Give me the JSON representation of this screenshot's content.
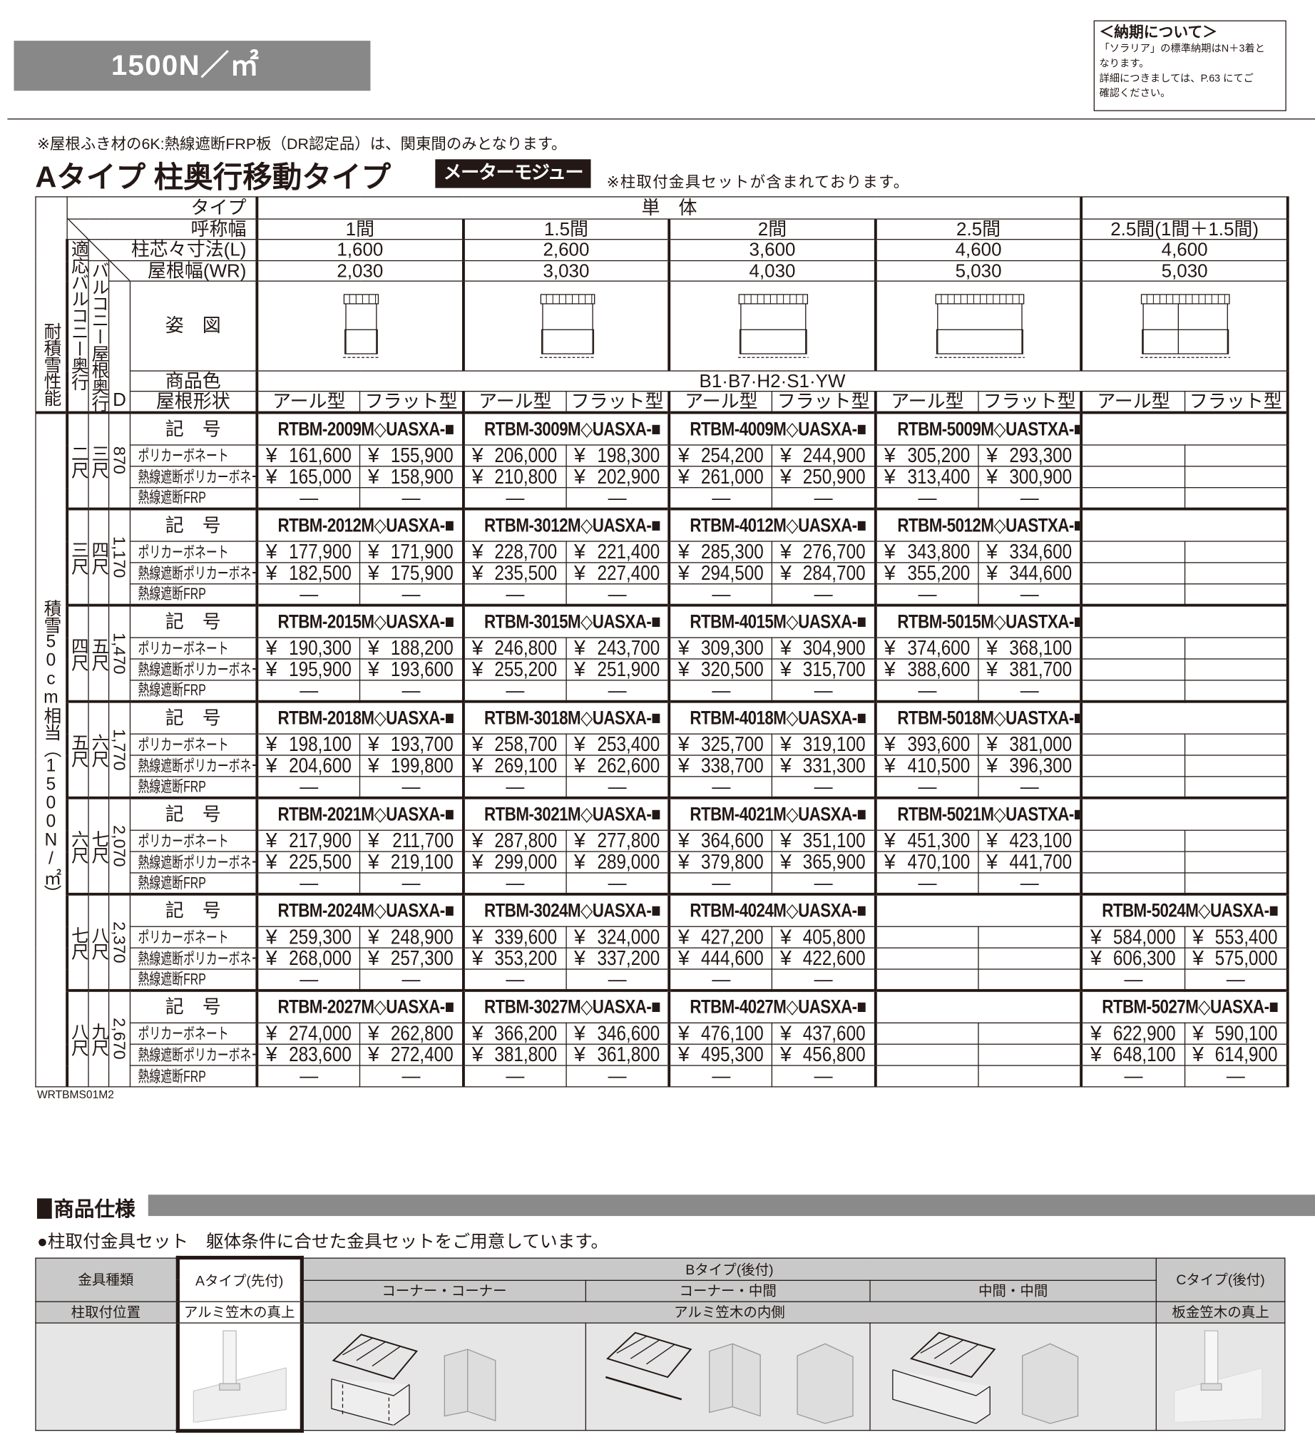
{
  "banner": "1500N／㎡",
  "notice": {
    "title": "＜納期について＞",
    "lines": [
      "「ソラリア」の標準納期はN＋3着と",
      "なります。",
      "詳細につきましては、P.63 にてご",
      "確認ください。"
    ]
  },
  "note_top": "※屋根ふき材の6K:熱線遮断FRP板（DR認定品）は、関東間のみとなります。",
  "title": "Aタイプ 柱奥行移動タイプ",
  "badge": "メーターモジュール",
  "title_note": "※柱取付金具セットが含まれております。",
  "table": {
    "side_header": "耐積雪性能",
    "labels": {
      "type": "タイプ",
      "width_name": "呼称幅",
      "post_pitch": "柱芯々寸法(L)",
      "roof_width": "屋根幅(WR)",
      "figure": "姿　図",
      "color": "商品色",
      "roof_shape": "屋根形状",
      "code": "記　号",
      "balcony_depth": "適応バルコニー奥行",
      "roof_depth": "バルコニー屋根奥行",
      "d": "D"
    },
    "type_single": "単　体",
    "columns": [
      {
        "name": "1間",
        "L": "1,600",
        "WR": "2,030"
      },
      {
        "name": "1.5間",
        "L": "2,600",
        "WR": "3,030"
      },
      {
        "name": "2間",
        "L": "3,600",
        "WR": "4,030"
      },
      {
        "name": "2.5間",
        "L": "4,600",
        "WR": "5,030"
      },
      {
        "name": "2.5間(1間＋1.5間)",
        "L": "4,600",
        "WR": "5,030"
      }
    ],
    "colors": "B1·B7·H2·S1·YW",
    "roof_shapes": [
      "アール型",
      "フラット型"
    ],
    "materials": [
      "ポリカーボネート",
      "熱線遮断ポリカーボネート",
      "熱線遮断FRP"
    ],
    "currency": "¥",
    "snow_label": "積雪50cm相当（1500N/㎡）",
    "groups": [
      {
        "bal": "二尺",
        "roof": "三尺",
        "d": "870",
        "codes": [
          "RTBM-2009M◇UASXA-■",
          "RTBM-3009M◇UASXA-■",
          "RTBM-4009M◇UASXA-■",
          "RTBM-5009M◇UASTXA-■",
          ""
        ],
        "prices": [
          [
            "161,600",
            "155,900",
            "206,000",
            "198,300",
            "254,200",
            "244,900",
            "305,200",
            "293,300",
            "",
            ""
          ],
          [
            "165,000",
            "158,900",
            "210,800",
            "202,900",
            "261,000",
            "250,900",
            "313,400",
            "300,900",
            "",
            ""
          ],
          [
            "—",
            "—",
            "—",
            "—",
            "—",
            "—",
            "—",
            "—",
            "",
            ""
          ]
        ]
      },
      {
        "bal": "三尺",
        "roof": "四尺",
        "d": "1,170",
        "codes": [
          "RTBM-2012M◇UASXA-■",
          "RTBM-3012M◇UASXA-■",
          "RTBM-4012M◇UASXA-■",
          "RTBM-5012M◇UASTXA-■",
          ""
        ],
        "prices": [
          [
            "177,900",
            "171,900",
            "228,700",
            "221,400",
            "285,300",
            "276,700",
            "343,800",
            "334,600",
            "",
            ""
          ],
          [
            "182,500",
            "175,900",
            "235,500",
            "227,400",
            "294,500",
            "284,700",
            "355,200",
            "344,600",
            "",
            ""
          ],
          [
            "—",
            "—",
            "—",
            "—",
            "—",
            "—",
            "—",
            "—",
            "",
            ""
          ]
        ]
      },
      {
        "bal": "四尺",
        "roof": "五尺",
        "d": "1,470",
        "codes": [
          "RTBM-2015M◇UASXA-■",
          "RTBM-3015M◇UASXA-■",
          "RTBM-4015M◇UASXA-■",
          "RTBM-5015M◇UASTXA-■",
          ""
        ],
        "prices": [
          [
            "190,300",
            "188,200",
            "246,800",
            "243,700",
            "309,300",
            "304,900",
            "374,600",
            "368,100",
            "",
            ""
          ],
          [
            "195,900",
            "193,600",
            "255,200",
            "251,900",
            "320,500",
            "315,700",
            "388,600",
            "381,700",
            "",
            ""
          ],
          [
            "—",
            "—",
            "—",
            "—",
            "—",
            "—",
            "—",
            "—",
            "",
            ""
          ]
        ]
      },
      {
        "bal": "五尺",
        "roof": "六尺",
        "d": "1,770",
        "codes": [
          "RTBM-2018M◇UASXA-■",
          "RTBM-3018M◇UASXA-■",
          "RTBM-4018M◇UASXA-■",
          "RTBM-5018M◇UASTXA-■",
          ""
        ],
        "prices": [
          [
            "198,100",
            "193,700",
            "258,700",
            "253,400",
            "325,700",
            "319,100",
            "393,600",
            "381,000",
            "",
            ""
          ],
          [
            "204,600",
            "199,800",
            "269,100",
            "262,600",
            "338,700",
            "331,300",
            "410,500",
            "396,300",
            "",
            ""
          ],
          [
            "—",
            "—",
            "—",
            "—",
            "—",
            "—",
            "—",
            "—",
            "",
            ""
          ]
        ]
      },
      {
        "bal": "六尺",
        "roof": "七尺",
        "d": "2,070",
        "codes": [
          "RTBM-2021M◇UASXA-■",
          "RTBM-3021M◇UASXA-■",
          "RTBM-4021M◇UASXA-■",
          "RTBM-5021M◇UASTXA-■",
          ""
        ],
        "prices": [
          [
            "217,900",
            "211,700",
            "287,800",
            "277,800",
            "364,600",
            "351,100",
            "451,300",
            "423,100",
            "",
            ""
          ],
          [
            "225,500",
            "219,100",
            "299,000",
            "289,000",
            "379,800",
            "365,900",
            "470,100",
            "441,700",
            "",
            ""
          ],
          [
            "—",
            "—",
            "—",
            "—",
            "—",
            "—",
            "—",
            "—",
            "",
            ""
          ]
        ]
      },
      {
        "bal": "七尺",
        "roof": "八尺",
        "d": "2,370",
        "codes": [
          "RTBM-2024M◇UASXA-■",
          "RTBM-3024M◇UASXA-■",
          "RTBM-4024M◇UASXA-■",
          "",
          "RTBM-5024M◇UASXA-■"
        ],
        "prices": [
          [
            "259,300",
            "248,900",
            "339,600",
            "324,000",
            "427,200",
            "405,800",
            "",
            "",
            "584,000",
            "553,400"
          ],
          [
            "268,000",
            "257,300",
            "353,200",
            "337,200",
            "444,600",
            "422,600",
            "",
            "",
            "606,300",
            "575,000"
          ],
          [
            "—",
            "—",
            "—",
            "—",
            "—",
            "—",
            "",
            "",
            "—",
            "—"
          ]
        ]
      },
      {
        "bal": "八尺",
        "roof": "九尺",
        "d": "2,670",
        "codes": [
          "RTBM-2027M◇UASXA-■",
          "RTBM-3027M◇UASXA-■",
          "RTBM-4027M◇UASXA-■",
          "",
          "RTBM-5027M◇UASXA-■"
        ],
        "prices": [
          [
            "274,000",
            "262,800",
            "366,200",
            "346,600",
            "476,100",
            "437,600",
            "",
            "",
            "622,900",
            "590,100"
          ],
          [
            "283,600",
            "272,400",
            "381,800",
            "361,800",
            "495,300",
            "456,800",
            "",
            "",
            "648,100",
            "614,900"
          ],
          [
            "—",
            "—",
            "—",
            "—",
            "—",
            "—",
            "",
            "",
            "—",
            "—"
          ]
        ]
      }
    ]
  },
  "footer_code": "WRTBMS01M2",
  "spec": {
    "heading": "商品仕様",
    "subheading": "●柱取付金具セット　躯体条件に合せた金具セットをご用意しています。",
    "row_labels": [
      "金具種類",
      "柱取付位置"
    ],
    "type_a": "Aタイプ(先付)",
    "type_b": "Bタイプ(後付)",
    "type_c": "Cタイプ(後付)",
    "b_sub": [
      "コーナー・コーナー",
      "コーナー・中間",
      "中間・中間"
    ],
    "pos_a": "アルミ笠木の真上",
    "pos_b": "アルミ笠木の内側",
    "pos_c": "板金笠木の真上"
  }
}
